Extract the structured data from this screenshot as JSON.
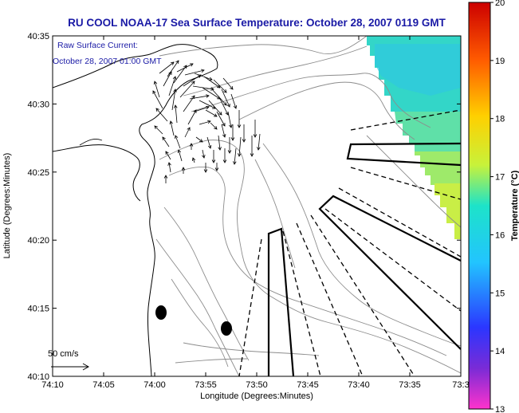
{
  "title": "RU COOL  NOAA-17  Sea Surface Temperature:  October 28, 2007 0119 GMT",
  "inset": {
    "line1": "Raw Surface Current:",
    "line2": "October 28, 2007 01:00 GMT"
  },
  "scale_label": "50 cm/s",
  "axes": {
    "xlabel": "Longitude (Degrees:Minutes)",
    "ylabel": "Latitude (Degrees:Minutes)",
    "x_ticks": [
      "74:10",
      "74:05",
      "74:00",
      "73:55",
      "73:50",
      "73:45",
      "73:40",
      "73:35",
      "73:3"
    ],
    "y_ticks": [
      "40:10",
      "40:15",
      "40:20",
      "40:25",
      "40:30",
      "40:35"
    ]
  },
  "colorbar": {
    "label": "Temperature (°C)",
    "ticks": [
      "13",
      "14",
      "15",
      "16",
      "17",
      "18",
      "19",
      "20"
    ],
    "range": [
      13,
      20
    ],
    "stops": [
      "#ff33cc",
      "#7a2bd6",
      "#2b36ff",
      "#22c4ff",
      "#1de3c9",
      "#c8f23a",
      "#ffd000",
      "#ff5a00",
      "#cc0000"
    ]
  },
  "colors": {
    "title": "#1a1aa6",
    "inset": "#1a1aa6",
    "contour": "#8c8c8c"
  }
}
